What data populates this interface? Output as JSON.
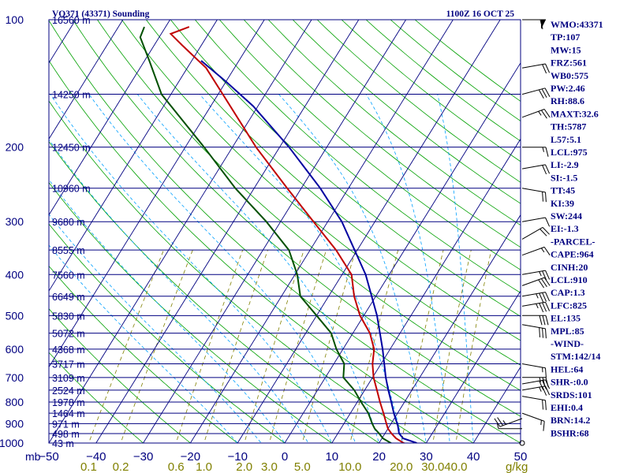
{
  "header": {
    "station": "VQ371 (43371) Sounding",
    "time": "1100Z 16 OCT 25"
  },
  "units": {
    "pressure": "mb",
    "mixing_ratio": "g/kg"
  },
  "chart_data": {
    "type": "skew-t",
    "pressure_axis": {
      "range": [
        1000,
        100
      ],
      "scale": "log",
      "tick_labels": [
        "100",
        "200",
        "300",
        "400",
        "500",
        "600",
        "700",
        "800",
        "900",
        "1000"
      ]
    },
    "temperature_axis": {
      "range": [
        -50,
        50
      ],
      "tick_labels": [
        "−50",
        "−40",
        "−30",
        "−20",
        "−10",
        "0",
        "10",
        "20",
        "30",
        "40",
        "50"
      ]
    },
    "mixing_ratio_labels": [
      "0.1",
      "0.2",
      "0.6",
      "1.0",
      "2.0",
      "3.0",
      "5.0",
      "10.0",
      "20.0",
      "30.0",
      "40.0"
    ],
    "height_levels": [
      {
        "pressure": 100,
        "label": "16560 m"
      },
      {
        "pressure": 150,
        "label": "14250 m"
      },
      {
        "pressure": 200,
        "label": "12450 m"
      },
      {
        "pressure": 250,
        "label": "10960 m"
      },
      {
        "pressure": 300,
        "label": "9680 m"
      },
      {
        "pressure": 350,
        "label": "8555 m"
      },
      {
        "pressure": 400,
        "label": "7560 m"
      },
      {
        "pressure": 450,
        "label": "6649 m"
      },
      {
        "pressure": 500,
        "label": "5830 m"
      },
      {
        "pressure": 550,
        "label": "5072 m"
      },
      {
        "pressure": 600,
        "label": "4368 m"
      },
      {
        "pressure": 650,
        "label": "3717 m"
      },
      {
        "pressure": 700,
        "label": "3109 m"
      },
      {
        "pressure": 750,
        "label": "2524 m"
      },
      {
        "pressure": 800,
        "label": "1978 m"
      },
      {
        "pressure": 850,
        "label": "1464 m"
      },
      {
        "pressure": 900,
        "label": "971 m"
      },
      {
        "pressure": 950,
        "label": "498 m"
      },
      {
        "pressure": 1000,
        "label": "43 m"
      }
    ],
    "series": [
      {
        "name": "Temperature",
        "color": "#c00000",
        "points": [
          [
            1005,
            26.0
          ],
          [
            1000,
            25.2
          ],
          [
            975,
            23.0
          ],
          [
            950,
            21.4
          ],
          [
            925,
            20.0
          ],
          [
            900,
            19.0
          ],
          [
            850,
            17.0
          ],
          [
            800,
            14.8
          ],
          [
            750,
            12.6
          ],
          [
            700,
            10.2
          ],
          [
            650,
            8.2
          ],
          [
            600,
            6.6
          ],
          [
            550,
            3.6
          ],
          [
            500,
            -0.8
          ],
          [
            450,
            -4.6
          ],
          [
            400,
            -8.0
          ],
          [
            350,
            -14.5
          ],
          [
            300,
            -23.0
          ],
          [
            250,
            -33.0
          ],
          [
            200,
            -45.0
          ],
          [
            150,
            -59.0
          ],
          [
            130,
            -66.0
          ],
          [
            115,
            -74.0
          ],
          [
            108,
            -78.0
          ],
          [
            104,
            -75.0
          ]
        ]
      },
      {
        "name": "Dew Point",
        "color": "#005000",
        "points": [
          [
            1005,
            23.0
          ],
          [
            1000,
            22.5
          ],
          [
            975,
            20.2
          ],
          [
            950,
            18.8
          ],
          [
            925,
            17.2
          ],
          [
            900,
            16.0
          ],
          [
            850,
            13.8
          ],
          [
            800,
            10.8
          ],
          [
            750,
            7.8
          ],
          [
            700,
            3.8
          ],
          [
            650,
            2.2
          ],
          [
            600,
            -1.4
          ],
          [
            550,
            -4.6
          ],
          [
            500,
            -10.0
          ],
          [
            450,
            -16.0
          ],
          [
            400,
            -19.5
          ],
          [
            350,
            -24.5
          ],
          [
            300,
            -33.0
          ],
          [
            250,
            -44.0
          ],
          [
            200,
            -56.0
          ],
          [
            150,
            -72.0
          ],
          [
            125,
            -79.0
          ],
          [
            110,
            -84.0
          ],
          [
            104,
            -84.5
          ]
        ]
      },
      {
        "name": "Parcel Path",
        "color": "#0000a0",
        "points": [
          [
            1000,
            28.0
          ],
          [
            975,
            24.5
          ],
          [
            950,
            23.0
          ],
          [
            910,
            21.7
          ],
          [
            850,
            19.2
          ],
          [
            800,
            17.2
          ],
          [
            750,
            15.0
          ],
          [
            700,
            12.8
          ],
          [
            600,
            8.4
          ],
          [
            500,
            2.8
          ],
          [
            400,
            -5.0
          ],
          [
            300,
            -17.0
          ],
          [
            250,
            -26.0
          ],
          [
            200,
            -38.0
          ],
          [
            160,
            -51.0
          ],
          [
            140,
            -60.0
          ],
          [
            125,
            -68.0
          ]
        ]
      }
    ],
    "wind_barbs": [
      {
        "pressure": 100,
        "direction": 90,
        "speed": 60
      },
      {
        "pressure": 130,
        "direction": 80,
        "speed": 20
      },
      {
        "pressure": 150,
        "direction": 75,
        "speed": 30
      },
      {
        "pressure": 170,
        "direction": 70,
        "speed": 25
      },
      {
        "pressure": 200,
        "direction": 90,
        "speed": 15
      },
      {
        "pressure": 225,
        "direction": 80,
        "speed": 20
      },
      {
        "pressure": 250,
        "direction": 100,
        "speed": 20
      },
      {
        "pressure": 300,
        "direction": 80,
        "speed": 10
      },
      {
        "pressure": 330,
        "direction": 60,
        "speed": 20
      },
      {
        "pressure": 360,
        "direction": 70,
        "speed": 15
      },
      {
        "pressure": 400,
        "direction": 80,
        "speed": 25
      },
      {
        "pressure": 425,
        "direction": 70,
        "speed": 30
      },
      {
        "pressure": 450,
        "direction": 80,
        "speed": 35
      },
      {
        "pressure": 475,
        "direction": 80,
        "speed": 35
      },
      {
        "pressure": 500,
        "direction": 90,
        "speed": 30
      },
      {
        "pressure": 525,
        "direction": 100,
        "speed": 30
      },
      {
        "pressure": 650,
        "direction": 100,
        "speed": 15
      },
      {
        "pressure": 700,
        "direction": 90,
        "speed": 25
      },
      {
        "pressure": 725,
        "direction": 80,
        "speed": 30
      },
      {
        "pressure": 750,
        "direction": 80,
        "speed": 25
      },
      {
        "pressure": 775,
        "direction": 100,
        "speed": 20
      },
      {
        "pressure": 850,
        "direction": 110,
        "speed": 15
      },
      {
        "pressure": 875,
        "direction": 250,
        "speed": 25
      },
      {
        "pressure": 925,
        "direction": 270,
        "speed": 5
      },
      {
        "pressure": 1000,
        "direction": 0,
        "speed": 0
      }
    ]
  },
  "indices": [
    "WMO:43371",
    "TP:107",
    "MW:15",
    "FRZ:561",
    "WB0:575",
    "PW:2.46",
    "RH:88.6",
    "MAXT:32.6",
    "TH:5787",
    "L57:5.1",
    "LCL:975",
    "LI:-2.9",
    "SI:-1.5",
    "TT:45",
    "KI:39",
    "SW:244",
    "EI:-1.3",
    "-PARCEL-",
    "CAPE:964",
    "CINH:20",
    "LCL:910",
    "CAP:1.3",
    "LFC:825",
    "EL:135",
    "MPL:85",
    "-WIND-",
    "STM:142/14",
    "HEL:64",
    "SHR-:0.0",
    "SRDS:101",
    "EHI:0.4",
    "BRN:14.2",
    "BSHR:68"
  ],
  "colors": {
    "axis": "#000080",
    "isotherm": "#000080",
    "dry_adiabat": "#00a000",
    "moist_adiabat": "#00a0ff",
    "mixing_ratio": "#808000",
    "background": "#ffffff"
  }
}
